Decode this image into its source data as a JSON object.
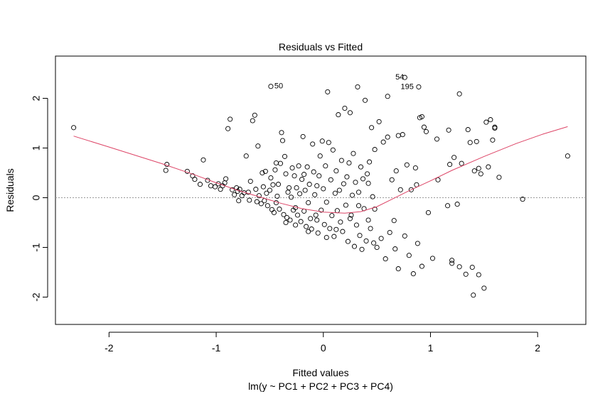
{
  "chart_data": {
    "type": "scatter",
    "title": "Residuals vs Fitted",
    "xlabel": "Fitted values",
    "subtitle": "lm(y ~ PC1 + PC2 + PC3 + PC4)",
    "ylabel": "Residuals",
    "xlim": [
      -2.5,
      2.45
    ],
    "ylim": [
      -2.55,
      2.85
    ],
    "xticks": [
      -2,
      -1,
      0,
      1,
      2
    ],
    "yticks": [
      -2,
      -1,
      0,
      1,
      2
    ],
    "xtick_labels": [
      "-2",
      "-1",
      "0",
      "1",
      "2"
    ],
    "ytick_labels": [
      "-2",
      "-1",
      "0",
      "1",
      "2"
    ],
    "reference_line": {
      "y": 0,
      "style": "dotted",
      "color": "#999999"
    },
    "smooth_color": "#dd4466",
    "point_color": "#000000",
    "points": [
      [
        -2.33,
        1.41
      ],
      [
        -1.46,
        0.67
      ],
      [
        -1.47,
        0.55
      ],
      [
        -1.27,
        0.53
      ],
      [
        -1.22,
        0.44
      ],
      [
        -1.2,
        0.37
      ],
      [
        -1.15,
        0.27
      ],
      [
        -1.12,
        0.76
      ],
      [
        -1.08,
        0.35
      ],
      [
        -1.05,
        0.24
      ],
      [
        -1.01,
        0.22
      ],
      [
        -0.98,
        0.28
      ],
      [
        -0.96,
        0.17
      ],
      [
        -0.94,
        0.24
      ],
      [
        -0.92,
        0.3
      ],
      [
        -0.91,
        0.38
      ],
      [
        -0.89,
        1.39
      ],
      [
        -0.87,
        1.58
      ],
      [
        -0.85,
        0.16
      ],
      [
        -0.83,
        0.06
      ],
      [
        -0.81,
        0.2
      ],
      [
        -0.8,
        0.13
      ],
      [
        -0.79,
        -0.06
      ],
      [
        -0.78,
        0.17
      ],
      [
        -0.76,
        0.04
      ],
      [
        -0.74,
        0.1
      ],
      [
        -0.72,
        0.84
      ],
      [
        -0.7,
        0.11
      ],
      [
        -0.69,
        -0.05
      ],
      [
        -0.68,
        0.33
      ],
      [
        -0.66,
        1.55
      ],
      [
        -0.64,
        1.66
      ],
      [
        -0.63,
        0.17
      ],
      [
        -0.62,
        -0.08
      ],
      [
        -0.61,
        1.04
      ],
      [
        -0.6,
        0.04
      ],
      [
        -0.58,
        -0.12
      ],
      [
        -0.57,
        0.5
      ],
      [
        -0.56,
        0.22
      ],
      [
        -0.55,
        -0.06
      ],
      [
        -0.54,
        0.53
      ],
      [
        -0.53,
        0.09
      ],
      [
        -0.52,
        -0.16
      ],
      [
        -0.5,
        0.15
      ],
      [
        -0.49,
        0.4
      ],
      [
        -0.48,
        -0.24
      ],
      [
        -0.47,
        0.26
      ],
      [
        -0.46,
        -0.3
      ],
      [
        -0.45,
        0.56
      ],
      [
        -0.44,
        -0.1
      ],
      [
        -0.43,
        0.03
      ],
      [
        -0.42,
        0.27
      ],
      [
        -0.41,
        -0.23
      ],
      [
        -0.4,
        0.69
      ],
      [
        -0.39,
        1.31
      ],
      [
        -0.38,
        1.15
      ],
      [
        -0.37,
        -0.34
      ],
      [
        -0.36,
        0.83
      ],
      [
        -0.35,
        0.48
      ],
      [
        -0.34,
        -0.4
      ],
      [
        -0.33,
        0.11
      ],
      [
        -0.32,
        0.2
      ],
      [
        -0.31,
        -0.45
      ],
      [
        -0.3,
        0.01
      ],
      [
        -0.29,
        0.6
      ],
      [
        -0.28,
        -0.25
      ],
      [
        -0.27,
        0.44
      ],
      [
        -0.26,
        -0.55
      ],
      [
        -0.25,
        0.2
      ],
      [
        -0.24,
        -0.35
      ],
      [
        -0.23,
        0.64
      ],
      [
        -0.22,
        0.08
      ],
      [
        -0.21,
        -0.48
      ],
      [
        -0.2,
        0.37
      ],
      [
        -0.19,
        1.23
      ],
      [
        -0.18,
        -0.27
      ],
      [
        -0.17,
        0.15
      ],
      [
        -0.16,
        -0.58
      ],
      [
        -0.15,
        0.62
      ],
      [
        -0.14,
        -0.1
      ],
      [
        -0.13,
        0.27
      ],
      [
        -0.12,
        -0.42
      ],
      [
        -0.11,
        -0.63
      ],
      [
        -0.1,
        1.08
      ],
      [
        -0.09,
        0.52
      ],
      [
        -0.08,
        0.06
      ],
      [
        -0.07,
        -0.35
      ],
      [
        -0.06,
        0.24
      ],
      [
        -0.05,
        -0.71
      ],
      [
        -0.04,
        0.44
      ],
      [
        -0.03,
        0.84
      ],
      [
        -0.02,
        -0.25
      ],
      [
        -0.01,
        1.14
      ],
      [
        0.0,
        0.18
      ],
      [
        0.01,
        -0.54
      ],
      [
        0.02,
        0.64
      ],
      [
        0.03,
        -0.09
      ],
      [
        0.04,
        2.13
      ],
      [
        0.05,
        1.11
      ],
      [
        0.06,
        -0.62
      ],
      [
        0.07,
        0.36
      ],
      [
        0.08,
        -0.36
      ],
      [
        0.09,
        0.96
      ],
      [
        0.1,
        -0.78
      ],
      [
        0.11,
        0.09
      ],
      [
        0.12,
        0.54
      ],
      [
        0.13,
        -0.26
      ],
      [
        0.14,
        1.67
      ],
      [
        0.15,
        0.15
      ],
      [
        0.16,
        -0.49
      ],
      [
        0.17,
        0.75
      ],
      [
        0.18,
        -0.68
      ],
      [
        0.19,
        0.28
      ],
      [
        0.2,
        1.8
      ],
      [
        0.21,
        -0.15
      ],
      [
        0.22,
        0.42
      ],
      [
        0.23,
        -0.88
      ],
      [
        0.24,
        0.7
      ],
      [
        0.25,
        1.71
      ],
      [
        0.26,
        -0.35
      ],
      [
        0.27,
        0.05
      ],
      [
        0.28,
        0.89
      ],
      [
        0.29,
        -0.98
      ],
      [
        0.3,
        0.31
      ],
      [
        0.31,
        -0.55
      ],
      [
        0.32,
        2.23
      ],
      [
        0.33,
        0.11
      ],
      [
        0.34,
        -0.76
      ],
      [
        0.35,
        0.62
      ],
      [
        0.36,
        -1.04
      ],
      [
        0.37,
        0.38
      ],
      [
        0.38,
        -0.22
      ],
      [
        0.39,
        1.96
      ],
      [
        0.4,
        -0.87
      ],
      [
        0.41,
        0.48
      ],
      [
        0.42,
        -0.45
      ],
      [
        0.43,
        0.72
      ],
      [
        0.44,
        -0.62
      ],
      [
        0.45,
        1.41
      ],
      [
        0.46,
        0.02
      ],
      [
        0.47,
        -0.91
      ],
      [
        0.48,
        0.97
      ],
      [
        0.5,
        -1.0
      ],
      [
        0.52,
        1.53
      ],
      [
        0.54,
        -0.82
      ],
      [
        0.56,
        1.12
      ],
      [
        0.58,
        -1.23
      ],
      [
        0.6,
        1.22
      ],
      [
        0.62,
        -0.7
      ],
      [
        0.64,
        0.36
      ],
      [
        0.66,
        -0.46
      ],
      [
        0.68,
        0.54
      ],
      [
        0.7,
        -1.43
      ],
      [
        0.72,
        0.16
      ],
      [
        0.74,
        1.27
      ],
      [
        0.76,
        -0.77
      ],
      [
        0.78,
        0.66
      ],
      [
        0.8,
        -1.16
      ],
      [
        0.82,
        0.16
      ],
      [
        0.84,
        -1.53
      ],
      [
        0.86,
        0.6
      ],
      [
        0.88,
        -0.92
      ],
      [
        0.9,
        1.61
      ],
      [
        0.92,
        -1.38
      ],
      [
        0.94,
        1.42
      ],
      [
        0.96,
        1.33
      ],
      [
        0.98,
        -0.3
      ],
      [
        1.02,
        -1.22
      ],
      [
        1.07,
        0.36
      ],
      [
        1.17,
        1.36
      ],
      [
        1.18,
        0.67
      ],
      [
        1.2,
        -1.32
      ],
      [
        1.22,
        0.81
      ],
      [
        1.25,
        -0.13
      ],
      [
        1.27,
        2.09
      ],
      [
        1.29,
        0.69
      ],
      [
        1.33,
        -1.54
      ],
      [
        1.35,
        1.37
      ],
      [
        1.37,
        1.11
      ],
      [
        1.39,
        -1.4
      ],
      [
        1.41,
        0.54
      ],
      [
        1.43,
        1.13
      ],
      [
        1.45,
        -1.55
      ],
      [
        1.47,
        0.48
      ],
      [
        1.5,
        -1.82
      ],
      [
        1.52,
        1.52
      ],
      [
        1.54,
        0.62
      ],
      [
        1.56,
        1.57
      ],
      [
        1.58,
        1.16
      ],
      [
        1.6,
        1.42
      ],
      [
        1.27,
        -1.39
      ],
      [
        1.4,
        -1.96
      ],
      [
        1.2,
        -1.26
      ],
      [
        1.45,
        0.59
      ],
      [
        1.06,
        1.18
      ],
      [
        1.16,
        -0.16
      ],
      [
        1.6,
        1.4
      ],
      [
        1.64,
        0.41
      ],
      [
        1.86,
        -0.03
      ],
      [
        2.28,
        0.84
      ],
      [
        0.76,
        2.42
      ],
      [
        0.89,
        2.23
      ],
      [
        -0.49,
        2.24
      ],
      [
        0.6,
        2.04
      ],
      [
        0.92,
        1.63
      ],
      [
        0.7,
        1.25
      ],
      [
        0.67,
        -1.03
      ],
      [
        0.87,
        0.26
      ],
      [
        0.42,
        0.29
      ],
      [
        -0.44,
        0.7
      ],
      [
        -0.18,
        0.47
      ],
      [
        -0.35,
        -0.5
      ],
      [
        -0.26,
        -0.2
      ],
      [
        -0.14,
        -0.68
      ],
      [
        -0.06,
        -0.45
      ],
      [
        0.03,
        -0.8
      ],
      [
        0.12,
        -0.64
      ],
      [
        0.25,
        -0.42
      ],
      [
        0.33,
        -0.16
      ],
      [
        0.48,
        -0.23
      ]
    ],
    "labeled_points": [
      {
        "label": "54",
        "x": 0.78,
        "y": 2.42
      },
      {
        "label": "195",
        "x": 0.87,
        "y": 2.23
      },
      {
        "label": "50",
        "x": -0.49,
        "y": 2.24
      }
    ],
    "smooth": [
      [
        -2.33,
        1.24
      ],
      [
        -2.0,
        1.02
      ],
      [
        -1.5,
        0.68
      ],
      [
        -1.2,
        0.46
      ],
      [
        -1.0,
        0.3
      ],
      [
        -0.8,
        0.15
      ],
      [
        -0.6,
        0.02
      ],
      [
        -0.4,
        -0.11
      ],
      [
        -0.2,
        -0.22
      ],
      [
        0.0,
        -0.29
      ],
      [
        0.2,
        -0.31
      ],
      [
        0.35,
        -0.28
      ],
      [
        0.5,
        -0.18
      ],
      [
        0.65,
        -0.02
      ],
      [
        0.8,
        0.14
      ],
      [
        1.0,
        0.34
      ],
      [
        1.2,
        0.55
      ],
      [
        1.5,
        0.83
      ],
      [
        1.8,
        1.09
      ],
      [
        2.05,
        1.28
      ],
      [
        2.28,
        1.43
      ]
    ]
  }
}
